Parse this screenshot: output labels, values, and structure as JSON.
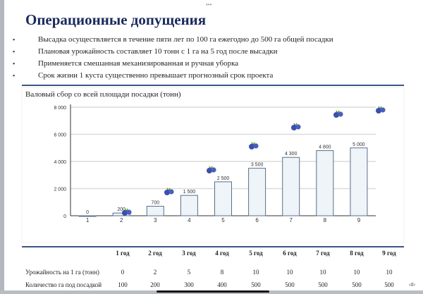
{
  "title": "Операционные допущения",
  "bullets": [
    "Высадка осуществляется в течение пяти лет по 100 га ежегодно до 500 га общей посадки",
    "Плановая урожайность составляет 10 тонн с 1 га на 5 год после высадки",
    "Применяется смешанная механизированная и ручная уборка",
    "Срок жизни 1 куста существенно превышает прогнозный срок проекта"
  ],
  "bullet_mark": "▪",
  "chart_data": {
    "type": "bar",
    "title": "Валовый сбор со всей площади посадки (тонн)",
    "categories": [
      "1",
      "2",
      "3",
      "4",
      "5",
      "6",
      "7",
      "8",
      "9"
    ],
    "values": [
      0,
      200,
      700,
      1500,
      2500,
      3500,
      4300,
      4800,
      5000
    ],
    "value_labels": [
      "0",
      "200",
      "700",
      "1 500",
      "2 500",
      "3 500",
      "4 300",
      "4 800",
      "5 000"
    ],
    "ylim": [
      0,
      8000
    ],
    "yticks": [
      "0",
      "2 000",
      "4 000",
      "6 000",
      "8 000"
    ],
    "grid": true,
    "bar_color": "#eef4f8",
    "bar_edge_color": "#5a6f8c",
    "decoration": "blueberry-icon"
  },
  "table": {
    "headers": [
      "1 год",
      "2 год",
      "3 год",
      "4 год",
      "5 год",
      "6 год",
      "7 год",
      "8 год",
      "9 год"
    ],
    "rows": [
      {
        "label": "Урожайность на 1 га (тонн)",
        "values": [
          "0",
          "2",
          "5",
          "8",
          "10",
          "10",
          "10",
          "10",
          "10"
        ]
      },
      {
        "label": "Количество га под посадкой",
        "values": [
          "100",
          "200",
          "300",
          "400",
          "500",
          "500",
          "500",
          "500",
          "500"
        ]
      }
    ]
  },
  "page_number": "‹#›",
  "colors": {
    "title": "#1a2a5c",
    "rule": "#3d5488",
    "berry": "#3b4fb0",
    "leaf": "#5a9a2a"
  }
}
